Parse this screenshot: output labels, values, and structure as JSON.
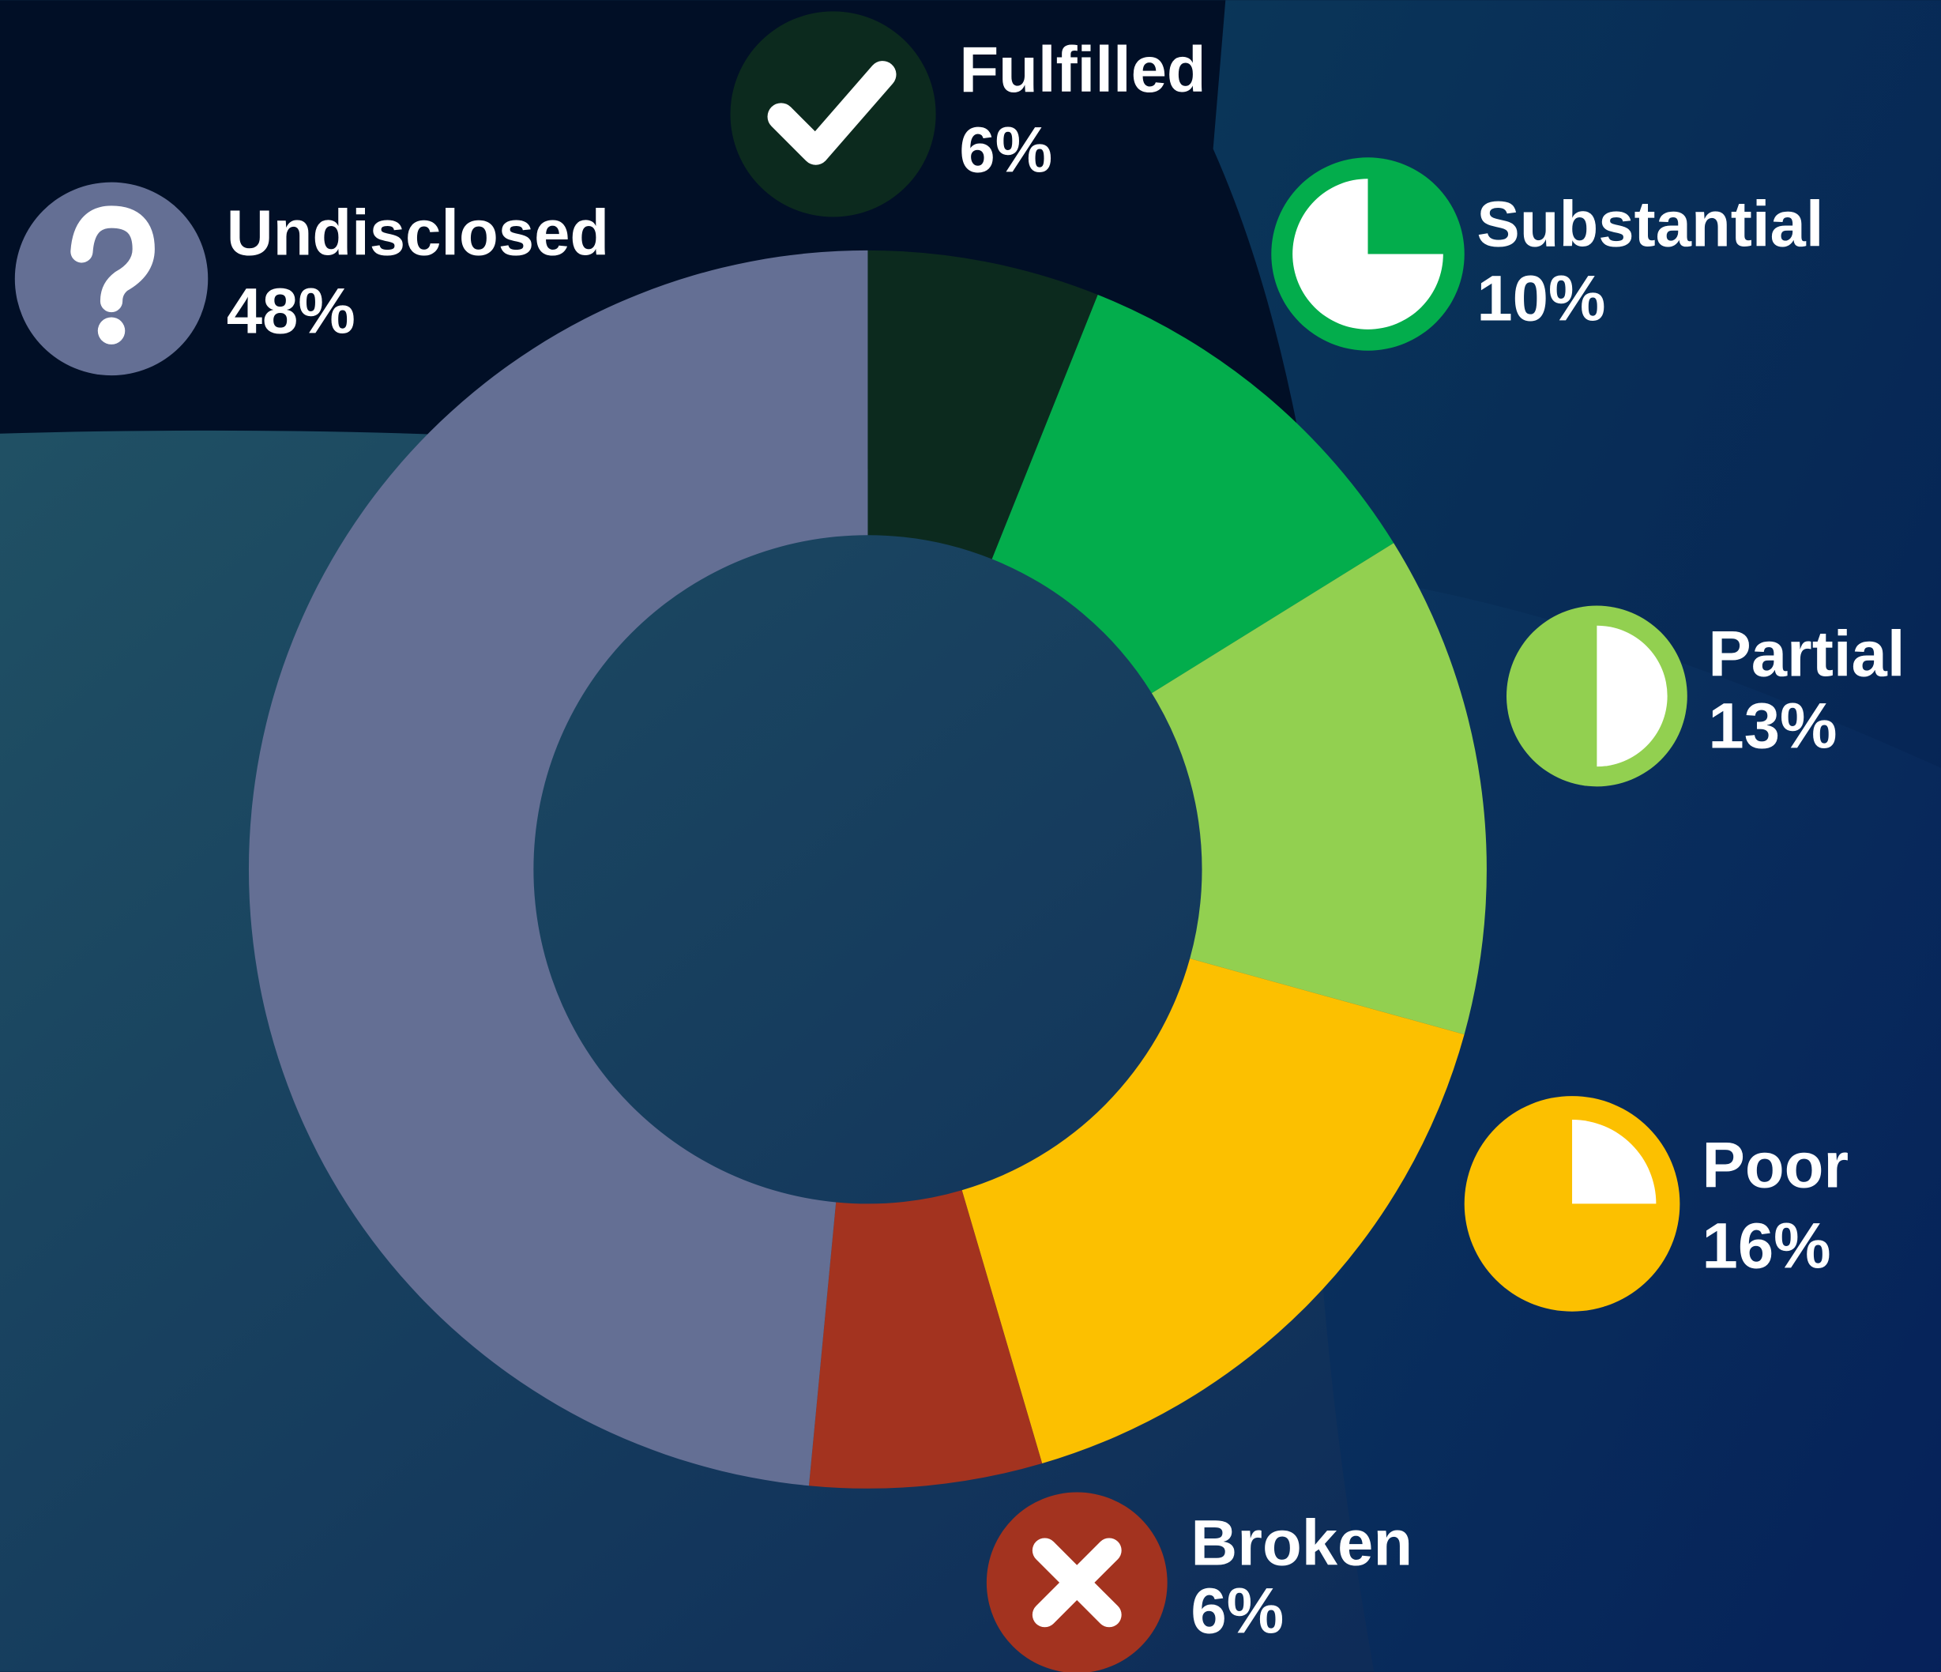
{
  "chart_data": {
    "type": "donut",
    "categories": [
      "Fulfilled",
      "Substantial",
      "Partial",
      "Poor",
      "Broken",
      "Undisclosed"
    ],
    "values": [
      6,
      10,
      13,
      16,
      6,
      48
    ],
    "value_labels": [
      "6%",
      "10%",
      "13%",
      "16%",
      "6%",
      "48%"
    ],
    "colors": [
      "#0c2a1e",
      "#03ad4c",
      "#92d050",
      "#fcc000",
      "#a3331f",
      "#646f94"
    ]
  }
}
